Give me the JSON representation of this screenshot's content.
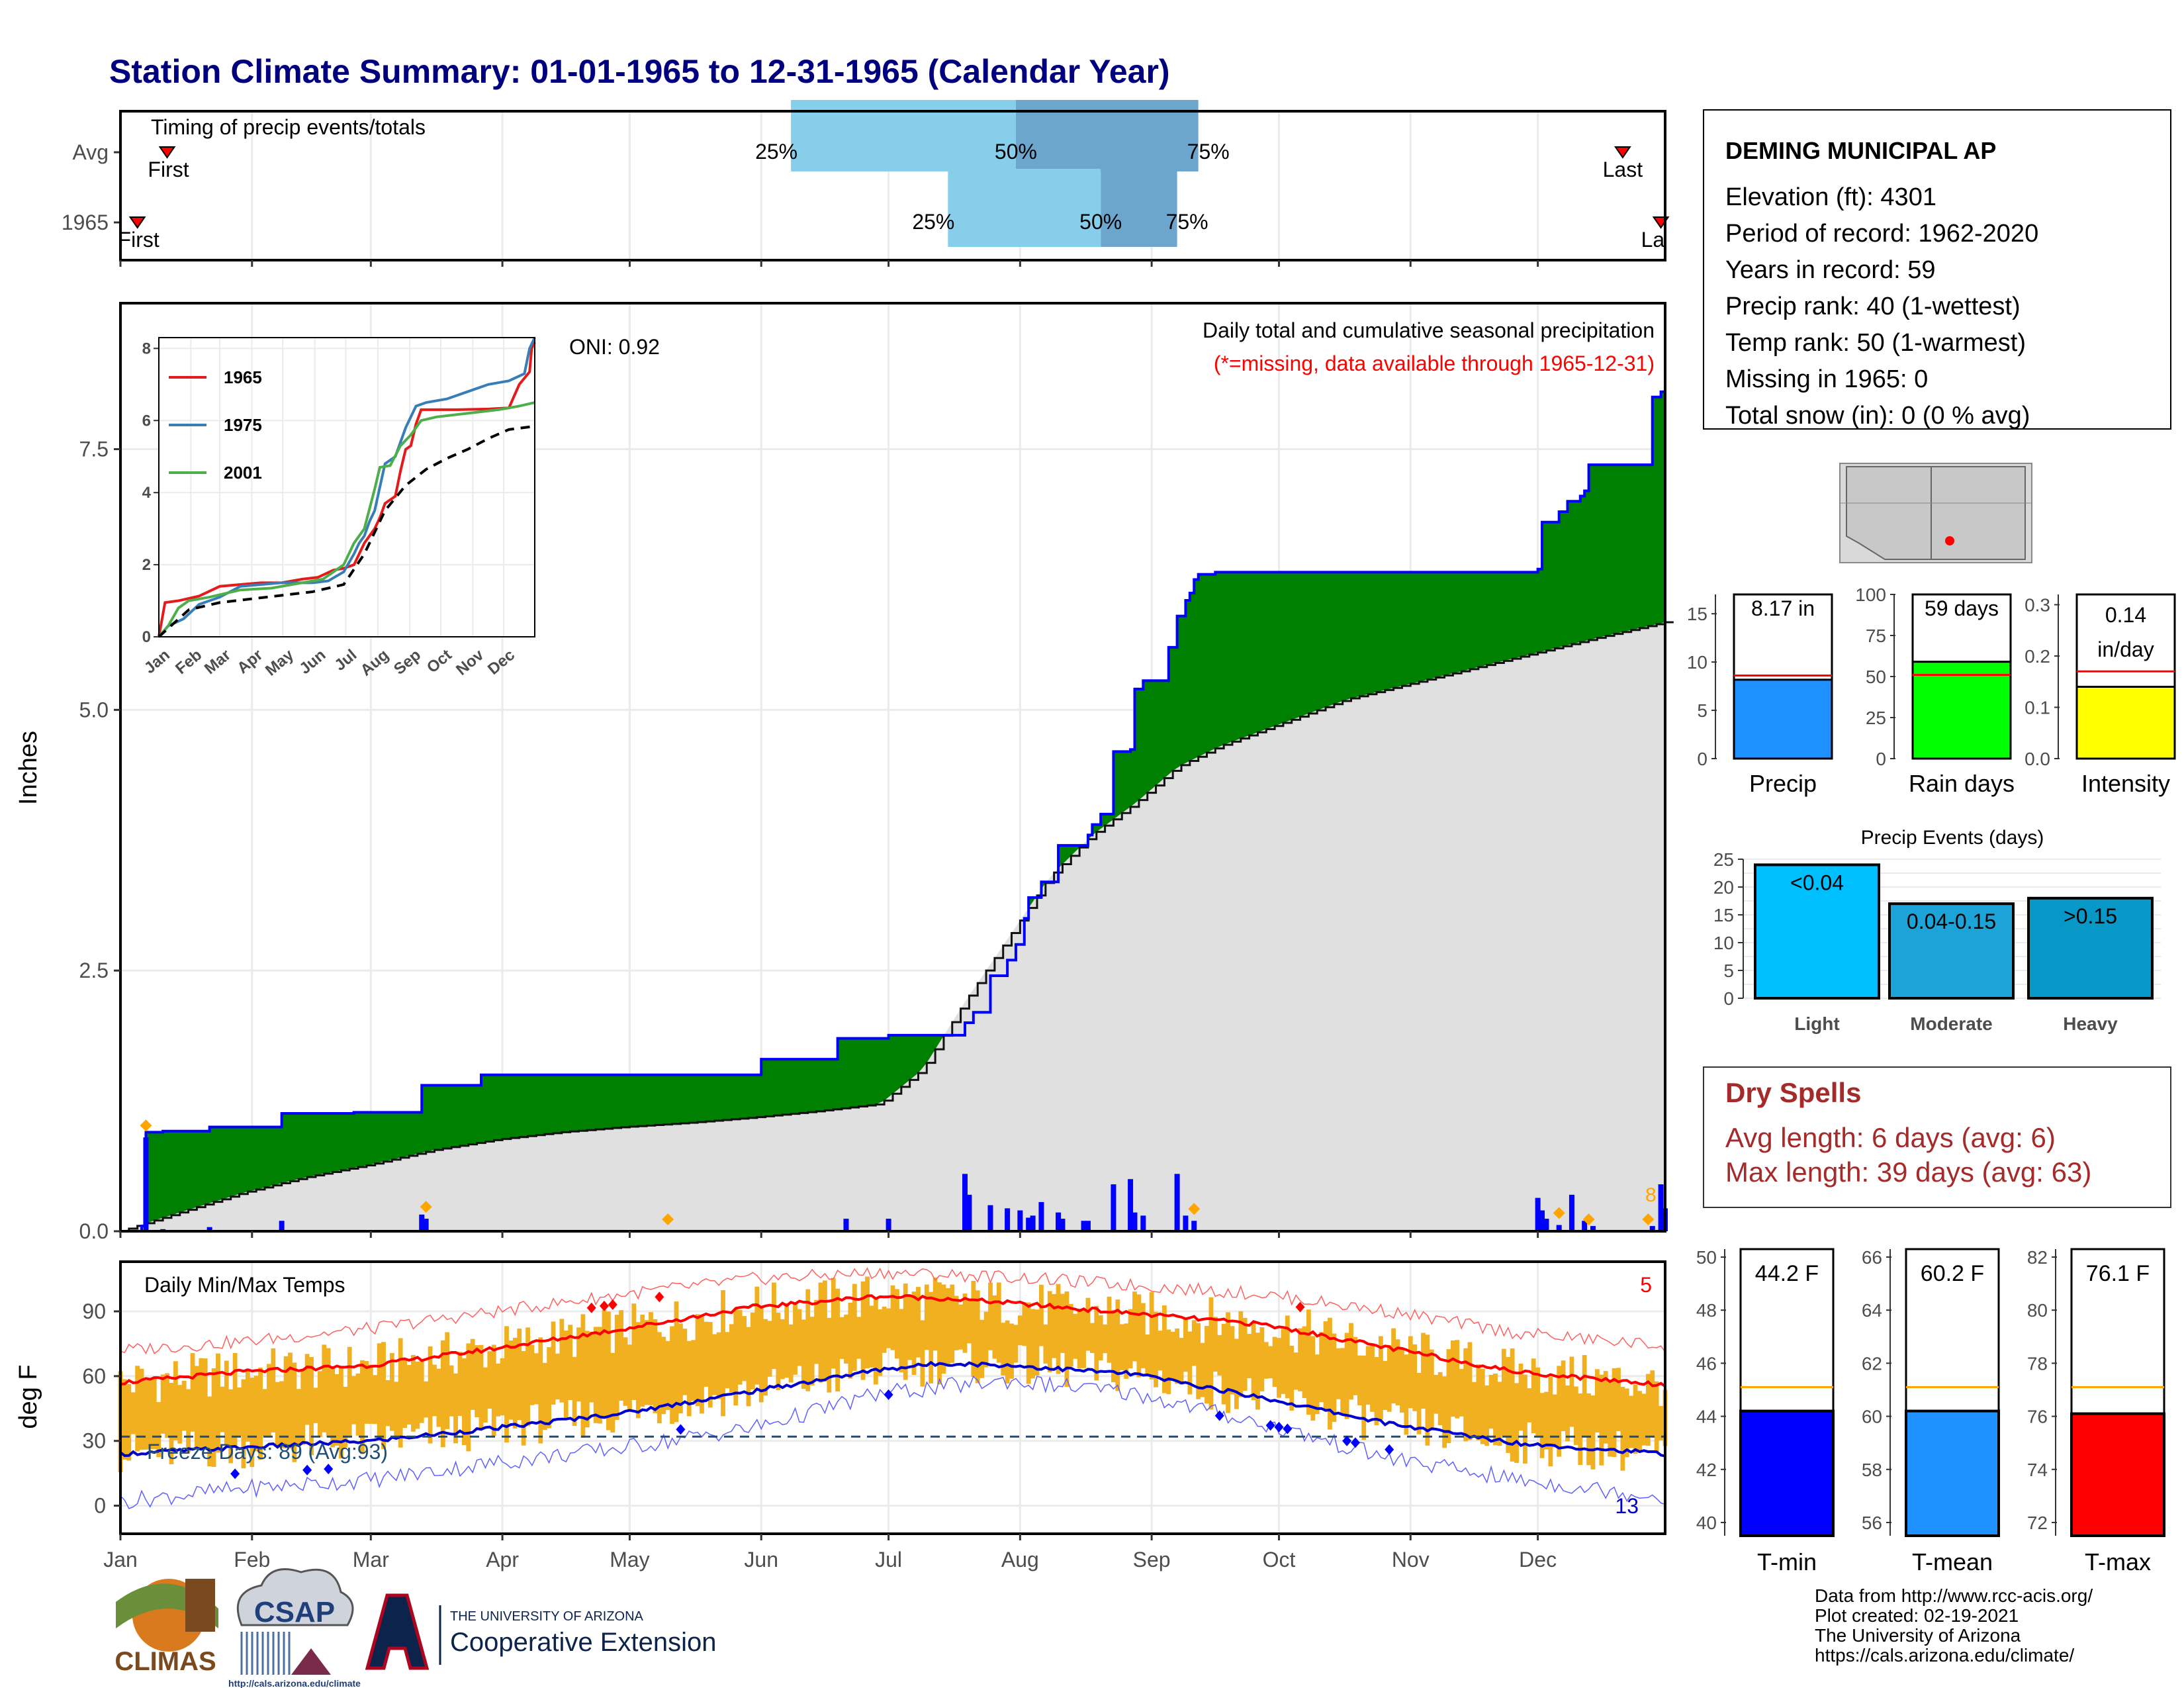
{
  "title": "Station Climate Summary: 01-01-1965 to 12-31-1965 (Calendar Year)",
  "colors": {
    "title": "#00007f",
    "accum_fill": "#008000",
    "accum_line": "#0000ff",
    "normal_fill": "#e0e0e0",
    "daily_bar": "#0000ff",
    "marker": "#ffa500",
    "quartile_light": "#87ceeb",
    "quartile_dark": "#6ca6cd",
    "temp_band": "#f0b020",
    "tmax_line": "#ff0000",
    "tmin_line": "#0000cd",
    "missing_note": "#ff0000",
    "dry_spells": "#a52a2a"
  },
  "timing": {
    "title": "Timing of precip events/totals",
    "rows": [
      {
        "label": "Avg",
        "first_label": "First",
        "last_label": "Last",
        "first_doy": 12,
        "last_doy": 355,
        "q25": 159,
        "q50": 212,
        "q75": 255,
        "q25_label": "25%",
        "q50_label": "50%",
        "q75_label": "75%"
      },
      {
        "label": "1965",
        "first_label": "First",
        "last_label": "La",
        "first_doy": 5,
        "last_doy": 364,
        "q25": 196,
        "q50": 232,
        "q75": 250,
        "q25_label": "25%",
        "q50_label": "50%",
        "q75_label": "75%"
      }
    ]
  },
  "main": {
    "ylabel": "Inches",
    "yticks": [
      0.0,
      2.5,
      5.0,
      7.5
    ],
    "ytick_labels": [
      "0.0",
      "2.5",
      "5.0",
      "7.5"
    ],
    "ylim": [
      0,
      8.9
    ],
    "oni": "ONI: 0.92",
    "note1": "Daily total and cumulative seasonal precipitation",
    "note2": "(*=missing, data available through 1965-12-31)",
    "last_marker_label": "8"
  },
  "chart_data": [
    {
      "type": "area",
      "title": "Daily total and cumulative seasonal precipitation",
      "ylabel": "Inches",
      "ylim": [
        0,
        8.9
      ],
      "series": [
        {
          "name": "1965",
          "x": [
            1,
            6,
            7,
            8,
            9,
            10,
            11,
            22,
            39,
            56,
            72,
            86,
            116,
            152,
            165,
            170,
            182,
            200,
            202,
            206,
            210,
            212,
            214,
            215,
            218,
            222,
            227,
            228,
            229,
            230,
            232,
            235,
            239,
            240,
            242,
            248,
            250,
            252,
            253,
            254,
            255,
            256,
            259,
            330,
            335,
            336,
            340,
            342,
            345,
            346,
            347,
            348,
            350,
            360,
            362,
            364,
            365
          ],
          "values": [
            0.0,
            0.05,
            0.95,
            0.95,
            0.95,
            0.95,
            0.96,
            1.0,
            1.13,
            1.14,
            1.4,
            1.5,
            1.5,
            1.65,
            1.65,
            1.85,
            1.88,
            2.0,
            2.1,
            2.45,
            2.6,
            2.75,
            3.0,
            3.2,
            3.35,
            3.7,
            3.7,
            3.7,
            3.8,
            3.9,
            4.0,
            4.6,
            4.62,
            5.2,
            5.28,
            5.6,
            5.9,
            6.05,
            6.12,
            6.25,
            6.3,
            6.3,
            6.32,
            6.32,
            6.35,
            6.8,
            6.9,
            7.0,
            7.05,
            7.1,
            7.35,
            7.35,
            7.35,
            7.35,
            8.0,
            8.05,
            8.17
          ]
        },
        {
          "name": "Normal (cumulative)",
          "x": [
            1,
            15,
            30,
            45,
            60,
            75,
            90,
            105,
            120,
            135,
            150,
            165,
            180,
            190,
            200,
            210,
            220,
            230,
            240,
            250,
            260,
            270,
            280,
            290,
            300,
            310,
            320,
            330,
            340,
            350,
            365
          ],
          "values": [
            0.0,
            0.18,
            0.37,
            0.52,
            0.64,
            0.78,
            0.88,
            0.95,
            1.0,
            1.04,
            1.09,
            1.15,
            1.22,
            1.55,
            2.2,
            2.8,
            3.4,
            3.8,
            4.1,
            4.45,
            4.65,
            4.8,
            4.95,
            5.1,
            5.2,
            5.3,
            5.4,
            5.5,
            5.6,
            5.7,
            5.84
          ]
        },
        {
          "name": "Daily precip",
          "x": [
            7,
            11,
            22,
            39,
            72,
            73,
            172,
            182,
            200,
            201,
            206,
            210,
            213,
            215,
            216,
            218,
            222,
            223,
            228,
            229,
            235,
            239,
            240,
            242,
            250,
            252,
            254,
            335,
            336,
            337,
            340,
            343,
            346,
            348,
            362,
            364,
            365
          ],
          "values": [
            0.9,
            0.02,
            0.04,
            0.1,
            0.16,
            0.12,
            0.12,
            0.12,
            0.55,
            0.35,
            0.25,
            0.22,
            0.2,
            0.13,
            0.15,
            0.28,
            0.18,
            0.12,
            0.1,
            0.1,
            0.45,
            0.5,
            0.18,
            0.15,
            0.55,
            0.15,
            0.1,
            0.32,
            0.2,
            0.12,
            0.06,
            0.35,
            0.1,
            0.05,
            0.05,
            0.45,
            0.22
          ]
        }
      ],
      "markers": [
        7,
        73,
        130,
        254,
        340,
        347,
        361
      ]
    },
    {
      "type": "line",
      "title": "",
      "xlabel": "",
      "ylabel": "",
      "ylim": [
        0,
        8.3
      ],
      "xticks": [
        "Jan",
        "Feb",
        "Mar",
        "Apr",
        "May",
        "Jun",
        "Jul",
        "Aug",
        "Sep",
        "Oct",
        "Nov",
        "Dec"
      ],
      "yticks": [
        0,
        2,
        4,
        6,
        8
      ],
      "legend": "top-left",
      "series": [
        {
          "name": "1965",
          "x": [
            1,
            7,
            20,
            40,
            60,
            80,
            100,
            120,
            140,
            155,
            170,
            180,
            190,
            200,
            210,
            215,
            220,
            230,
            235,
            240,
            245,
            250,
            255,
            270,
            290,
            320,
            340,
            350,
            360,
            362,
            365
          ],
          "values": [
            0.0,
            0.95,
            1.0,
            1.13,
            1.4,
            1.45,
            1.5,
            1.5,
            1.6,
            1.65,
            1.85,
            1.9,
            2.0,
            2.6,
            3.0,
            3.3,
            3.7,
            3.9,
            4.6,
            5.2,
            5.3,
            5.9,
            6.3,
            6.3,
            6.3,
            6.32,
            6.35,
            7.0,
            7.35,
            8.0,
            8.17
          ]
        },
        {
          "name": "1975",
          "x": [
            1,
            10,
            25,
            40,
            60,
            80,
            100,
            120,
            150,
            165,
            180,
            190,
            195,
            200,
            205,
            210,
            220,
            230,
            240,
            250,
            260,
            280,
            300,
            320,
            340,
            355,
            360,
            365
          ],
          "values": [
            0.0,
            0.3,
            0.5,
            0.9,
            1.1,
            1.4,
            1.45,
            1.5,
            1.5,
            1.55,
            1.8,
            2.3,
            2.6,
            2.8,
            3.2,
            3.5,
            4.8,
            5.0,
            5.8,
            6.4,
            6.5,
            6.6,
            6.8,
            7.0,
            7.1,
            7.3,
            8.0,
            8.3
          ]
        },
        {
          "name": "2001",
          "x": [
            1,
            10,
            20,
            30,
            50,
            80,
            110,
            140,
            160,
            180,
            190,
            200,
            210,
            215,
            225,
            235,
            245,
            255,
            270,
            300,
            330,
            350,
            365
          ],
          "values": [
            0.0,
            0.3,
            0.8,
            1.0,
            1.1,
            1.3,
            1.35,
            1.5,
            1.6,
            2.0,
            2.6,
            3.0,
            4.1,
            4.7,
            4.75,
            5.3,
            5.6,
            6.0,
            6.1,
            6.2,
            6.3,
            6.4,
            6.5
          ]
        },
        {
          "name": "Normal",
          "x": [
            1,
            30,
            60,
            90,
            120,
            150,
            180,
            200,
            220,
            240,
            260,
            280,
            300,
            320,
            340,
            365
          ],
          "values": [
            0.0,
            0.75,
            0.95,
            1.05,
            1.15,
            1.25,
            1.45,
            2.3,
            3.5,
            4.2,
            4.65,
            4.95,
            5.2,
            5.5,
            5.75,
            5.84
          ]
        }
      ]
    },
    {
      "type": "bar",
      "title": "Timing of precip events/totals",
      "categories": [
        "Avg",
        "1965"
      ],
      "series": [
        {
          "name": "25%",
          "values": [
            159,
            196
          ]
        },
        {
          "name": "50%",
          "values": [
            212,
            232
          ]
        },
        {
          "name": "75%",
          "values": [
            255,
            250
          ]
        }
      ]
    },
    {
      "type": "line",
      "title": "Daily Min/Max Temps",
      "ylabel": "deg F",
      "ylim": [
        -13,
        113
      ],
      "yticks": [
        0,
        30,
        60,
        90
      ],
      "series": [
        {
          "name": "Normal max",
          "x": [
            1,
            30,
            60,
            90,
            120,
            150,
            180,
            195,
            210,
            240,
            270,
            300,
            330,
            365
          ],
          "values": [
            57,
            62,
            65,
            73,
            82,
            92,
            97,
            96,
            94,
            89,
            84,
            73,
            62,
            56
          ]
        },
        {
          "name": "Normal min",
          "x": [
            1,
            30,
            60,
            90,
            120,
            150,
            180,
            195,
            210,
            240,
            270,
            300,
            330,
            365
          ],
          "values": [
            24,
            27,
            30,
            36,
            43,
            53,
            63,
            66,
            65,
            61,
            50,
            38,
            29,
            24
          ]
        },
        {
          "name": "Record high",
          "x": [
            1,
            30,
            60,
            90,
            120,
            150,
            180,
            210,
            240,
            270,
            300,
            330,
            365
          ],
          "values": [
            72,
            76,
            82,
            90,
            98,
            105,
            108,
            106,
            102,
            98,
            90,
            80,
            74
          ]
        },
        {
          "name": "Record low",
          "x": [
            1,
            30,
            60,
            90,
            120,
            150,
            180,
            210,
            240,
            270,
            300,
            330,
            365
          ],
          "values": [
            2,
            8,
            12,
            20,
            27,
            36,
            52,
            58,
            52,
            38,
            22,
            12,
            4
          ]
        }
      ],
      "freeze_line": 32,
      "freeze_label": "Freeze Days: 89 (Avg:93)",
      "record_high_count": "5",
      "record_low_count": "13"
    },
    {
      "type": "bar",
      "title": "",
      "categories": [
        "Precip",
        "Rain days",
        "Intensity"
      ],
      "series": [
        {
          "name": "1965",
          "values": [
            8.17,
            59,
            0.14
          ]
        },
        {
          "name": "Avg",
          "values": [
            8.6,
            51,
            0.17
          ]
        }
      ]
    },
    {
      "type": "bar",
      "title": "Precip Events (days)",
      "categories": [
        "Light",
        "Moderate",
        "Heavy"
      ],
      "labels": [
        "<0.04",
        "0.04-0.15",
        ">0.15"
      ],
      "values": [
        24,
        17,
        18
      ],
      "ylim": [
        0,
        25
      ]
    },
    {
      "type": "bar",
      "title": "",
      "categories": [
        "T-min",
        "T-mean",
        "T-max"
      ],
      "series": [
        {
          "name": "1965",
          "values": [
            44.2,
            60.2,
            76.1
          ]
        },
        {
          "name": "Avg",
          "values": [
            45.1,
            61.1,
            77.1
          ]
        }
      ]
    }
  ],
  "inset": {
    "legend": [
      "1965",
      "1975",
      "2001"
    ],
    "legend_colors": [
      "#e41a1c",
      "#377eb8",
      "#4daf4a"
    ],
    "yticks": [
      "0",
      "2",
      "4",
      "6",
      "8"
    ],
    "xticks": [
      "Jan",
      "Feb",
      "Mar",
      "Apr",
      "May",
      "Jun",
      "Jul",
      "Aug",
      "Sep",
      "Oct",
      "Nov",
      "Dec"
    ]
  },
  "months": [
    "Jan",
    "Feb",
    "Mar",
    "Apr",
    "May",
    "Jun",
    "Jul",
    "Aug",
    "Sep",
    "Oct",
    "Nov",
    "Dec"
  ],
  "station": {
    "name": "DEMING MUNICIPAL AP",
    "lines": [
      "Elevation (ft): 4301",
      "Period of record: 1962-2020",
      "Years in record: 59",
      "Precip rank: 40 (1-wettest)",
      "Temp rank: 50 (1-warmest)",
      "Missing in 1965: 0",
      "Total snow (in): 0 (0 % avg)"
    ]
  },
  "mini_bars": [
    {
      "cat": "Precip",
      "label": "8.17 in",
      "value": 8.17,
      "avg": 8.6,
      "ymax": 17,
      "ticks": [
        "0",
        "5",
        "10",
        "15"
      ],
      "tickvals": [
        0,
        5,
        10,
        15
      ],
      "color": "#1e90ff"
    },
    {
      "cat": "Rain days",
      "label": "59 days",
      "value": 59,
      "avg": 51,
      "ymax": 100,
      "ticks": [
        "0",
        "25",
        "50",
        "75",
        "100"
      ],
      "tickvals": [
        0,
        25,
        50,
        75,
        100
      ],
      "color": "#00ff00"
    },
    {
      "cat": "Intensity",
      "label": "0.14",
      "label2": "in/day",
      "value": 0.14,
      "avg": 0.17,
      "ymax": 0.32,
      "ticks": [
        "0.0",
        "0.1",
        "0.2",
        "0.3"
      ],
      "tickvals": [
        0,
        0.1,
        0.2,
        0.3
      ],
      "color": "#ffff00"
    }
  ],
  "events": {
    "title": "Precip Events (days)",
    "yticks": [
      "0",
      "5",
      "10",
      "15",
      "20",
      "25"
    ],
    "bars": [
      {
        "cat": "Light",
        "label": "<0.04",
        "value": 24,
        "color": "#00bfff"
      },
      {
        "cat": "Moderate",
        "label": "0.04-0.15",
        "value": 17,
        "color": "#1ca4d8"
      },
      {
        "cat": "Heavy",
        "label": ">0.15",
        "value": 18,
        "color": "#0898c8"
      }
    ]
  },
  "dry_spells": {
    "title": "Dry Spells",
    "avg": "Avg length: 6 days (avg: 6)",
    "max": "Max length: 39 days (avg: 63)"
  },
  "temp_bars": [
    {
      "cat": "T-min",
      "label": "44.2 F",
      "value": 44.2,
      "avg": 45.1,
      "ymin": 39.5,
      "ymax": 50.3,
      "ticks": [
        "40",
        "42",
        "44",
        "46",
        "48",
        "50"
      ],
      "tickvals": [
        40,
        42,
        44,
        46,
        48,
        50
      ],
      "color": "#0000ff"
    },
    {
      "cat": "T-mean",
      "label": "60.2 F",
      "value": 60.2,
      "avg": 61.1,
      "ymin": 55.5,
      "ymax": 66.3,
      "ticks": [
        "56",
        "58",
        "60",
        "62",
        "64",
        "66"
      ],
      "tickvals": [
        56,
        58,
        60,
        62,
        64,
        66
      ],
      "color": "#1e90ff"
    },
    {
      "cat": "T-max",
      "label": "76.1 F",
      "value": 76.1,
      "avg": 77.1,
      "ymin": 71.5,
      "ymax": 82.3,
      "ticks": [
        "72",
        "74",
        "76",
        "78",
        "80",
        "82"
      ],
      "tickvals": [
        72,
        74,
        76,
        78,
        80,
        82
      ],
      "color": "#ff0000"
    }
  ],
  "temps": {
    "title": "Daily Min/Max Temps",
    "ylabel": "deg F",
    "yticks": [
      "0",
      "30",
      "60",
      "90"
    ],
    "freeze_label": "Freeze Days: 89 (Avg:93)",
    "record_high_count": "5",
    "record_low_count": "13"
  },
  "footer": {
    "credits": [
      "Data from http://www.rcc-acis.org/",
      "Plot created: 02-19-2021",
      "The University of Arizona",
      "https://cals.arizona.edu/climate/"
    ],
    "climas": "CLIMAS",
    "csap": "CSAP",
    "csap_url": "http://cals.arizona.edu/climate",
    "ua_small": "THE UNIVERSITY OF ARIZONA",
    "ua_big": "Cooperative Extension"
  }
}
